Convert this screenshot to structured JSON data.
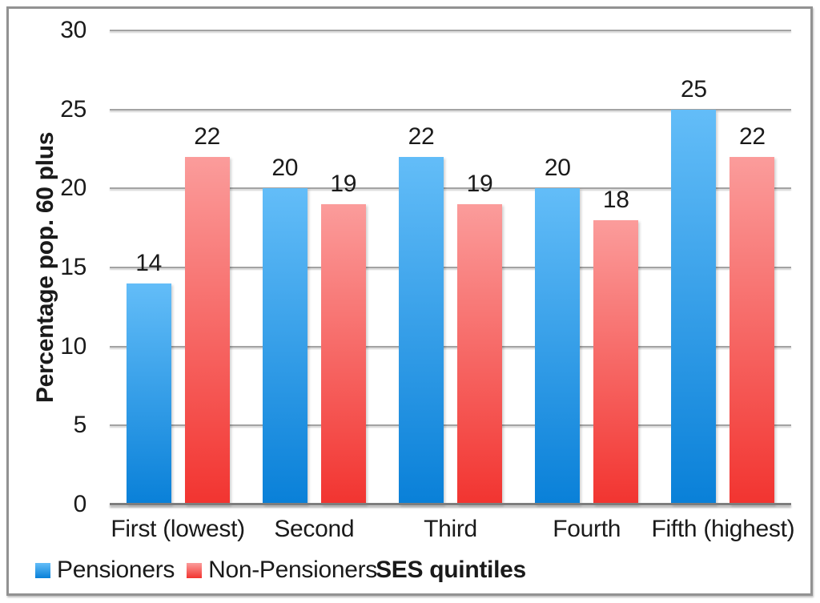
{
  "chart_data": {
    "type": "bar",
    "title": "",
    "xlabel": "SES quintiles",
    "ylabel": "Percentage pop. 60 plus",
    "categories": [
      "First (lowest)",
      "Second",
      "Third",
      "Fourth",
      "Fifth (highest)"
    ],
    "series": [
      {
        "name": "Pensioners",
        "values": [
          14,
          20,
          22,
          20,
          25
        ],
        "color_top": "#63BDF8",
        "color_bottom": "#0980D8"
      },
      {
        "name": "Non-Pensioners",
        "values": [
          22,
          19,
          19,
          18,
          22
        ],
        "color_top": "#FB9C9B",
        "color_bottom": "#F23430"
      }
    ],
    "ylim": [
      0,
      30
    ],
    "yticks": [
      0,
      5,
      10,
      15,
      20,
      25,
      30
    ],
    "grid": true,
    "legend_position": "bottom-left",
    "value_labels_shown": true
  },
  "colors": {
    "gridline": "#A3A3A3",
    "axis_line": "#7D7D7D",
    "frame_border": "#929292",
    "text": "#1A1A1A",
    "background": "#FFFFFF"
  }
}
